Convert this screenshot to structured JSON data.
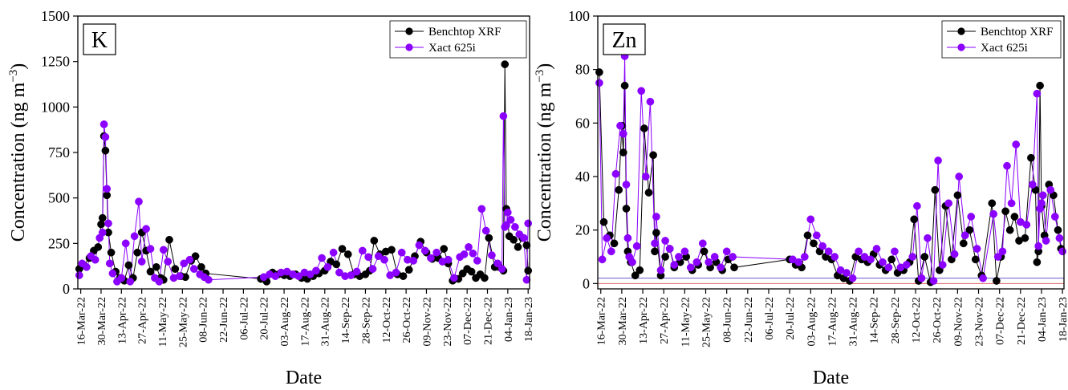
{
  "chart_data": [
    {
      "type": "scatter",
      "panel_label": "K",
      "xlabel": "Date",
      "ylabel": "Concentration (ng m⁻³)",
      "ylabel_base": "Concentration (ng m",
      "ylabel_sup": "−3",
      "ylabel_tail": ")",
      "ylim": [
        0,
        1500
      ],
      "yticks": [
        "0",
        "250",
        "500",
        "750",
        "1000",
        "1250",
        "1500"
      ],
      "xticks": [
        "16-Mar-22",
        "30-Mar-22",
        "13-Apr-22",
        "27-Apr-22",
        "11-May-22",
        "25-May-22",
        "08-Jun-22",
        "22-Jun-22",
        "06-Jul-22",
        "20-Jul-22",
        "03-Aug-22",
        "17-Aug-22",
        "31-Aug-22",
        "14-Sep-22",
        "28-Sep-22",
        "12-Oct-22",
        "26-Oct-22",
        "09-Nov-22",
        "23-Nov-22",
        "07-Dec-22",
        "21-Dec-22",
        "04-Jan-23",
        "18-Jan-23"
      ],
      "xrange": [
        "2022-03-14",
        "2023-01-19"
      ],
      "legend_position": "top-right",
      "grid": false,
      "colors": {
        "benchtop": "#000000",
        "xact": "#8b00ff",
        "zero_line": "#6a5acd"
      },
      "series": [
        {
          "name": "Benchtop XRF",
          "x": [
            "2022-03-15",
            "2022-03-18",
            "2022-03-22",
            "2022-03-25",
            "2022-03-28",
            "2022-03-30",
            "2022-03-31",
            "2022-04-01",
            "2022-04-02",
            "2022-04-03",
            "2022-04-04",
            "2022-04-06",
            "2022-04-09",
            "2022-04-12",
            "2022-04-15",
            "2022-04-18",
            "2022-04-21",
            "2022-04-24",
            "2022-04-27",
            "2022-04-30",
            "2022-05-03",
            "2022-05-07",
            "2022-05-10",
            "2022-05-12",
            "2022-05-16",
            "2022-05-20",
            "2022-05-24",
            "2022-05-27",
            "2022-05-31",
            "2022-06-03",
            "2022-06-07",
            "2022-06-10",
            "2022-07-18",
            "2022-07-22",
            "2022-07-26",
            "2022-07-30",
            "2022-08-03",
            "2022-08-07",
            "2022-08-11",
            "2022-08-15",
            "2022-08-19",
            "2022-08-23",
            "2022-08-27",
            "2022-08-31",
            "2022-09-04",
            "2022-09-08",
            "2022-09-12",
            "2022-09-16",
            "2022-09-20",
            "2022-09-24",
            "2022-09-28",
            "2022-10-01",
            "2022-10-04",
            "2022-10-08",
            "2022-10-12",
            "2022-10-16",
            "2022-10-20",
            "2022-10-24",
            "2022-10-28",
            "2022-11-01",
            "2022-11-05",
            "2022-11-09",
            "2022-11-13",
            "2022-11-17",
            "2022-11-21",
            "2022-11-24",
            "2022-11-27",
            "2022-12-01",
            "2022-12-04",
            "2022-12-07",
            "2022-12-10",
            "2022-12-13",
            "2022-12-16",
            "2022-12-19",
            "2022-12-22",
            "2022-12-26",
            "2022-12-29",
            "2023-01-01",
            "2023-01-02",
            "2023-01-03",
            "2023-01-05",
            "2023-01-08",
            "2023-01-11",
            "2023-01-14",
            "2023-01-17",
            "2023-01-18"
          ],
          "values": [
            110,
            130,
            170,
            210,
            230,
            355,
            390,
            840,
            760,
            515,
            310,
            200,
            95,
            60,
            45,
            130,
            60,
            200,
            310,
            210,
            95,
            120,
            60,
            50,
            270,
            110,
            70,
            65,
            155,
            180,
            120,
            85,
            55,
            40,
            90,
            80,
            75,
            70,
            80,
            60,
            55,
            70,
            85,
            100,
            150,
            135,
            220,
            190,
            80,
            70,
            80,
            100,
            265,
            190,
            205,
            215,
            80,
            70,
            105,
            180,
            260,
            200,
            165,
            170,
            220,
            140,
            45,
            55,
            85,
            110,
            95,
            60,
            80,
            60,
            280,
            120,
            120,
            100,
            1235,
            440,
            290,
            270,
            230,
            280,
            240,
            100
          ]
        },
        {
          "name": "Xact 625i",
          "x": [
            "2022-03-15",
            "2022-03-17",
            "2022-03-20",
            "2022-03-23",
            "2022-03-26",
            "2022-03-29",
            "2022-03-31",
            "2022-04-01",
            "2022-04-02",
            "2022-04-03",
            "2022-04-04",
            "2022-04-05",
            "2022-04-07",
            "2022-04-10",
            "2022-04-13",
            "2022-04-16",
            "2022-04-19",
            "2022-04-22",
            "2022-04-25",
            "2022-04-27",
            "2022-04-30",
            "2022-05-03",
            "2022-05-06",
            "2022-05-09",
            "2022-05-12",
            "2022-05-15",
            "2022-05-19",
            "2022-05-23",
            "2022-05-26",
            "2022-05-30",
            "2022-06-02",
            "2022-06-06",
            "2022-06-09",
            "2022-06-12",
            "2022-07-20",
            "2022-07-24",
            "2022-07-28",
            "2022-08-01",
            "2022-08-05",
            "2022-08-09",
            "2022-08-13",
            "2022-08-17",
            "2022-08-21",
            "2022-08-25",
            "2022-08-29",
            "2022-09-02",
            "2022-09-06",
            "2022-09-10",
            "2022-09-14",
            "2022-09-18",
            "2022-09-22",
            "2022-09-26",
            "2022-09-30",
            "2022-10-03",
            "2022-10-07",
            "2022-10-11",
            "2022-10-15",
            "2022-10-19",
            "2022-10-23",
            "2022-10-27",
            "2022-10-31",
            "2022-11-04",
            "2022-11-08",
            "2022-11-12",
            "2022-11-16",
            "2022-11-20",
            "2022-11-24",
            "2022-11-28",
            "2022-12-02",
            "2022-12-05",
            "2022-12-08",
            "2022-12-11",
            "2022-12-14",
            "2022-12-17",
            "2022-12-20",
            "2022-12-24",
            "2022-12-28",
            "2022-12-31",
            "2023-01-01",
            "2023-01-02",
            "2023-01-03",
            "2023-01-04",
            "2023-01-06",
            "2023-01-09",
            "2023-01-12",
            "2023-01-15",
            "2023-01-17",
            "2023-01-18"
          ],
          "values": [
            75,
            140,
            120,
            180,
            160,
            280,
            310,
            905,
            835,
            550,
            360,
            140,
            85,
            40,
            60,
            250,
            40,
            290,
            480,
            150,
            330,
            220,
            60,
            40,
            215,
            150,
            60,
            70,
            140,
            160,
            110,
            80,
            65,
            50,
            65,
            80,
            70,
            90,
            95,
            80,
            70,
            90,
            80,
            100,
            170,
            120,
            200,
            90,
            70,
            75,
            95,
            210,
            175,
            110,
            180,
            160,
            75,
            90,
            200,
            160,
            155,
            240,
            210,
            170,
            200,
            150,
            160,
            60,
            175,
            190,
            230,
            195,
            155,
            440,
            320,
            185,
            140,
            110,
            950,
            340,
            350,
            420,
            380,
            340,
            300,
            280,
            50,
            360
          ]
        }
      ]
    },
    {
      "type": "scatter",
      "panel_label": "Zn",
      "xlabel": "Date",
      "ylabel": "Concentration (ng m⁻³)",
      "ylabel_base": "Concentration (ng m",
      "ylabel_sup": "−3",
      "ylabel_tail": ")",
      "ylim": [
        -2,
        100
      ],
      "yticks": [
        "0",
        "20",
        "40",
        "60",
        "80",
        "100"
      ],
      "xticks": [
        "16-Mar-22",
        "30-Mar-22",
        "13-Apr-22",
        "27-Apr-22",
        "11-May-22",
        "25-May-22",
        "08-Jun-22",
        "22-Jun-22",
        "06-Jul-22",
        "20-Jul-22",
        "03-Aug-22",
        "17-Aug-22",
        "31-Aug-22",
        "14-Sep-22",
        "28-Sep-22",
        "12-Oct-22",
        "26-Oct-22",
        "09-Nov-22",
        "23-Nov-22",
        "07-Dec-22",
        "21-Dec-22",
        "04-Jan-23",
        "18-Jan-23"
      ],
      "xrange": [
        "2022-03-14",
        "2023-01-19"
      ],
      "legend_position": "top-right",
      "grid": false,
      "colors": {
        "benchtop": "#000000",
        "xact": "#8b00ff",
        "zero_line": "#e06060",
        "baseline_line": "#6a5acd"
      },
      "series": [
        {
          "name": "Benchtop XRF",
          "x": [
            "2022-03-15",
            "2022-03-18",
            "2022-03-22",
            "2022-03-25",
            "2022-03-28",
            "2022-03-30",
            "2022-03-31",
            "2022-04-01",
            "2022-04-02",
            "2022-04-03",
            "2022-04-05",
            "2022-04-08",
            "2022-04-11",
            "2022-04-14",
            "2022-04-17",
            "2022-04-20",
            "2022-04-21",
            "2022-04-22",
            "2022-04-25",
            "2022-04-28",
            "2022-05-01",
            "2022-05-04",
            "2022-05-08",
            "2022-05-12",
            "2022-05-16",
            "2022-05-20",
            "2022-05-24",
            "2022-05-28",
            "2022-06-01",
            "2022-06-05",
            "2022-06-09",
            "2022-06-13",
            "2022-07-20",
            "2022-07-24",
            "2022-07-28",
            "2022-08-01",
            "2022-08-05",
            "2022-08-09",
            "2022-08-13",
            "2022-08-17",
            "2022-08-21",
            "2022-08-25",
            "2022-08-29",
            "2022-09-02",
            "2022-09-06",
            "2022-09-10",
            "2022-09-14",
            "2022-09-18",
            "2022-09-22",
            "2022-09-26",
            "2022-09-30",
            "2022-10-04",
            "2022-10-08",
            "2022-10-11",
            "2022-10-14",
            "2022-10-18",
            "2022-10-22",
            "2022-10-25",
            "2022-10-28",
            "2022-11-01",
            "2022-11-05",
            "2022-11-09",
            "2022-11-13",
            "2022-11-17",
            "2022-11-21",
            "2022-11-25",
            "2022-12-02",
            "2022-12-05",
            "2022-12-08",
            "2022-12-11",
            "2022-12-14",
            "2022-12-17",
            "2022-12-20",
            "2022-12-24",
            "2022-12-28",
            "2022-12-31",
            "2023-01-01",
            "2023-01-02",
            "2023-01-03",
            "2023-01-04",
            "2023-01-06",
            "2023-01-09",
            "2023-01-12",
            "2023-01-15",
            "2023-01-17"
          ],
          "values": [
            79,
            23,
            18,
            15,
            35,
            59,
            49,
            74,
            28,
            12,
            8,
            3,
            5,
            58,
            34,
            48,
            12,
            19,
            3,
            10,
            13,
            6,
            8,
            10,
            5,
            7,
            12,
            6,
            8,
            5,
            9,
            6,
            9,
            7,
            6,
            18,
            15,
            12,
            10,
            9,
            3,
            2,
            1,
            10,
            9,
            8,
            11,
            7,
            5,
            9,
            4,
            5,
            8,
            24,
            1,
            10,
            0.5,
            35,
            5,
            29,
            9,
            33,
            15,
            20,
            9,
            3,
            30,
            1,
            10,
            27,
            20,
            25,
            16,
            17,
            47,
            35,
            8,
            12,
            74,
            29,
            18,
            37,
            33,
            20,
            13
          ]
        },
        {
          "name": "Xact 625i",
          "x": [
            "2022-03-15",
            "2022-03-17",
            "2022-03-20",
            "2022-03-23",
            "2022-03-26",
            "2022-03-29",
            "2022-03-31",
            "2022-04-01",
            "2022-04-02",
            "2022-04-03",
            "2022-04-04",
            "2022-04-06",
            "2022-04-09",
            "2022-04-12",
            "2022-04-15",
            "2022-04-18",
            "2022-04-21",
            "2022-04-22",
            "2022-04-25",
            "2022-04-28",
            "2022-05-01",
            "2022-05-04",
            "2022-05-07",
            "2022-05-11",
            "2022-05-15",
            "2022-05-19",
            "2022-05-23",
            "2022-05-27",
            "2022-05-31",
            "2022-06-04",
            "2022-06-08",
            "2022-06-12",
            "2022-07-22",
            "2022-07-26",
            "2022-07-30",
            "2022-08-03",
            "2022-08-07",
            "2022-08-11",
            "2022-08-15",
            "2022-08-19",
            "2022-08-23",
            "2022-08-27",
            "2022-08-31",
            "2022-09-04",
            "2022-09-08",
            "2022-09-12",
            "2022-09-16",
            "2022-09-20",
            "2022-09-24",
            "2022-09-28",
            "2022-10-02",
            "2022-10-06",
            "2022-10-10",
            "2022-10-13",
            "2022-10-16",
            "2022-10-20",
            "2022-10-24",
            "2022-10-27",
            "2022-10-30",
            "2022-11-03",
            "2022-11-07",
            "2022-11-10",
            "2022-11-14",
            "2022-11-18",
            "2022-11-22",
            "2022-11-26",
            "2022-12-03",
            "2022-12-06",
            "2022-12-09",
            "2022-12-12",
            "2022-12-15",
            "2022-12-18",
            "2022-12-21",
            "2022-12-25",
            "2022-12-29",
            "2023-01-01",
            "2023-01-02",
            "2023-01-03",
            "2023-01-04",
            "2023-01-05",
            "2023-01-07",
            "2023-01-10",
            "2023-01-13",
            "2023-01-16",
            "2023-01-18"
          ],
          "values": [
            75,
            9,
            17,
            12,
            41,
            59,
            56,
            85,
            37,
            17,
            10,
            8,
            14,
            72,
            40,
            68,
            15,
            25,
            5,
            16,
            13,
            7,
            10,
            12,
            6,
            8,
            15,
            8,
            10,
            6,
            12,
            10,
            9,
            8,
            10,
            24,
            18,
            14,
            12,
            10,
            5,
            4,
            2,
            12,
            10,
            9,
            13,
            8,
            6,
            12,
            6,
            7,
            10,
            29,
            2,
            17,
            1,
            46,
            7,
            30,
            11,
            40,
            18,
            25,
            13,
            2,
            26,
            10,
            12,
            44,
            30,
            52,
            23,
            22,
            37,
            71,
            14,
            28,
            30,
            33,
            16,
            35,
            25,
            17,
            12
          ]
        }
      ]
    }
  ]
}
